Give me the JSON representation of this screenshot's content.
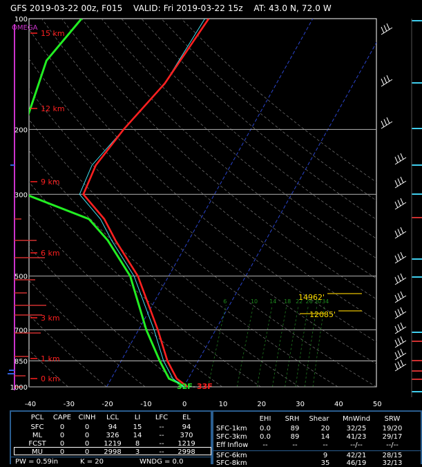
{
  "header": {
    "title": "GFS 2019-03-22 00z, F015    VALID: Fri 2019-03-22 15z    AT: 43.0 N, 72.0 W"
  },
  "colors": {
    "temperature": "#ff2020",
    "dewpoint": "#22ee22",
    "wetbulb": "#40e0f0",
    "isobar": "#a0a0a0",
    "omega": "#cc33cc",
    "fzl_text": "#ffdd00",
    "height_labels": "#ff2020",
    "panel_border": "#2a5d8f"
  },
  "chart_data": {
    "type": "line",
    "title": "",
    "omega_label": "OMEGA",
    "x_ticks": [
      -40,
      -30,
      -20,
      -10,
      0,
      10,
      20,
      30,
      40,
      50
    ],
    "pressure_levels": [
      100,
      200,
      300,
      500,
      700,
      850,
      1000
    ],
    "height_labels": [
      "15 km",
      "12 km",
      "9 km",
      "6 km",
      "3 km",
      "1 km",
      "0 km"
    ],
    "series": [
      {
        "key": "temperature",
        "points": [
          {
            "p": 1000,
            "t": 1
          },
          {
            "p": 975,
            "t": -1
          },
          {
            "p": 950,
            "t": -3
          },
          {
            "p": 850,
            "t": -8
          },
          {
            "p": 700,
            "t": -15
          },
          {
            "p": 500,
            "t": -28
          },
          {
            "p": 400,
            "t": -39
          },
          {
            "p": 350,
            "t": -45
          },
          {
            "p": 300,
            "t": -54
          },
          {
            "p": 250,
            "t": -55
          },
          {
            "p": 200,
            "t": -53
          },
          {
            "p": 150,
            "t": -49
          },
          {
            "p": 100,
            "t": -47
          }
        ]
      },
      {
        "key": "wetbulb",
        "points": [
          {
            "p": 1000,
            "t": 0
          },
          {
            "p": 975,
            "t": -2
          },
          {
            "p": 950,
            "t": -4
          },
          {
            "p": 850,
            "t": -9
          },
          {
            "p": 700,
            "t": -16
          },
          {
            "p": 500,
            "t": -29
          },
          {
            "p": 400,
            "t": -40
          },
          {
            "p": 350,
            "t": -46
          },
          {
            "p": 300,
            "t": -55
          },
          {
            "p": 250,
            "t": -56
          },
          {
            "p": 200,
            "t": -53
          },
          {
            "p": 150,
            "t": -49
          },
          {
            "p": 100,
            "t": -48
          }
        ]
      },
      {
        "key": "dewpoint",
        "points": [
          {
            "p": 1000,
            "t": 0
          },
          {
            "p": 975,
            "t": -2
          },
          {
            "p": 950,
            "t": -5
          },
          {
            "p": 850,
            "t": -10
          },
          {
            "p": 700,
            "t": -18
          },
          {
            "p": 500,
            "t": -30
          },
          {
            "p": 400,
            "t": -41
          },
          {
            "p": 350,
            "t": -49
          },
          {
            "p": 300,
            "t": -69
          },
          {
            "p": 200,
            "t": -79
          },
          {
            "p": 130,
            "t": -83
          },
          {
            "p": 100,
            "t": -80
          }
        ]
      }
    ],
    "surface_labels": {
      "dewpoint": "32F",
      "separator": "-",
      "temperature": "33F"
    },
    "frz_levels": [
      {
        "label": "14962'"
      },
      {
        "label": "12085'"
      }
    ],
    "mixing_ratio_labels": [
      "6",
      "10",
      "14",
      "18",
      "22",
      "26",
      "30",
      "34"
    ]
  },
  "table_left": {
    "headers": [
      "PCL",
      "CAPE",
      "CINH",
      "LCL",
      "LI",
      "LFC",
      "EL"
    ],
    "rows": [
      [
        "SFC",
        "0",
        "0",
        "94",
        "15",
        "--",
        "94"
      ],
      [
        "ML",
        "0",
        "0",
        "326",
        "14",
        "--",
        "370"
      ],
      [
        "FCST",
        "0",
        "0",
        "1219",
        "8",
        "--",
        "1219"
      ],
      [
        "MU",
        "0",
        "0",
        "2998",
        "3",
        "--",
        "2998"
      ]
    ],
    "footer": [
      "PW = 0.59in",
      "K = 20",
      "WNDG = 0.0"
    ]
  },
  "table_right": {
    "headers": [
      "EHI",
      "SRH",
      "Shear",
      "MnWind",
      "SRW"
    ],
    "rows": [
      [
        "SFC-1km",
        "0.0",
        "89",
        "20",
        "32/25",
        "19/20"
      ],
      [
        "SFC-3km",
        "0.0",
        "89",
        "14",
        "41/23",
        "29/17"
      ],
      [
        "Eff Inflow",
        "--",
        "--",
        "--",
        "--/--",
        "--/--"
      ],
      [
        "SFC-6km",
        "",
        "",
        "9",
        "42/21",
        "28/15"
      ],
      [
        "SFC-8km",
        "",
        "",
        "35",
        "46/19",
        "32/13"
      ]
    ]
  }
}
